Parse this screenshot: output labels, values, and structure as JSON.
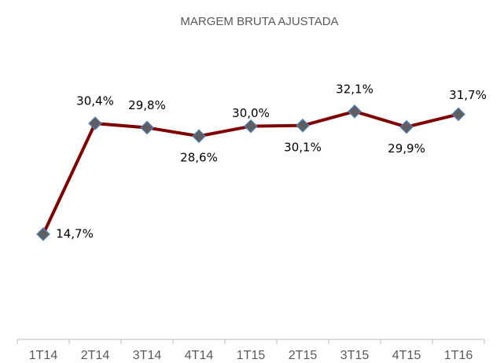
{
  "chart_data": {
    "type": "line",
    "title": "MARGEM BRUTA AJUSTADA",
    "categories": [
      "1T14",
      "2T14",
      "3T14",
      "4T14",
      "1T15",
      "2T15",
      "3T15",
      "4T15",
      "1T16"
    ],
    "series": [
      {
        "name": "Margem Bruta Ajustada",
        "color": "#800000",
        "marker_color": "#5f5f5f",
        "marker_edge": "#4f81bd",
        "values": [
          14.7,
          30.4,
          29.8,
          28.6,
          30.0,
          30.1,
          32.1,
          29.9,
          31.7
        ],
        "value_labels": [
          "14,7%",
          "30,4%",
          "29,8%",
          "28,6%",
          "30,0%",
          "30,1%",
          "32,1%",
          "29,9%",
          "31,7%"
        ]
      }
    ],
    "ylim": [
      0,
      45
    ]
  }
}
